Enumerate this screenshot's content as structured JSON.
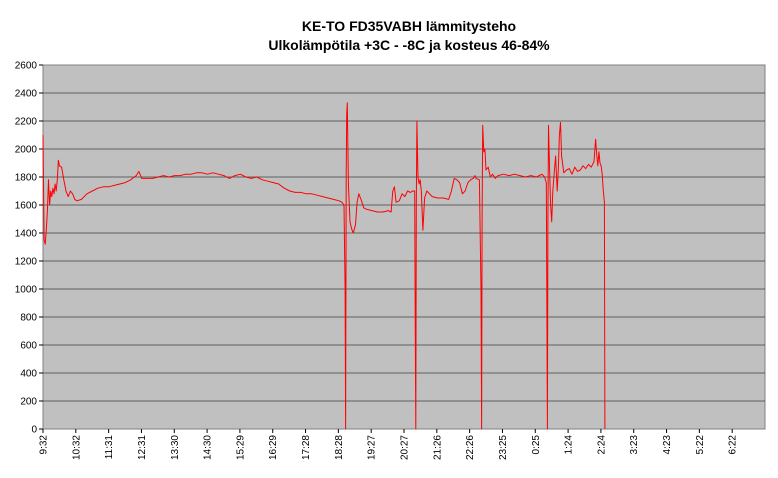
{
  "chart_data": {
    "type": "line",
    "title_line1": "KE-TO FD35VABH lämmitysteho",
    "title_line2": "Ulkolämpötila  +3C - -8C ja kosteus 46-84%",
    "xlabel": "",
    "ylabel": "",
    "ylim": [
      0,
      2600
    ],
    "y_ticks": [
      0,
      200,
      400,
      600,
      800,
      1000,
      1200,
      1400,
      1600,
      1800,
      2000,
      2200,
      2400,
      2600
    ],
    "x_tick_labels": [
      "9:32",
      "10:32",
      "11:31",
      "12:31",
      "13:30",
      "14:30",
      "15:29",
      "16:29",
      "17:28",
      "18:28",
      "19:27",
      "20:27",
      "21:26",
      "22:26",
      "23:25",
      "0:25",
      "1:24",
      "2:24",
      "3:23",
      "4:23",
      "5:22",
      "6:22"
    ],
    "x_range_minutes": [
      0,
      1317
    ],
    "plot_background": "#c0c0c0",
    "grid": true,
    "legend": "none",
    "series": [
      {
        "color": "#ff0000",
        "points": [
          [
            0,
            2100
          ],
          [
            2,
            1350
          ],
          [
            4,
            1320
          ],
          [
            6,
            1420
          ],
          [
            8,
            1560
          ],
          [
            10,
            1780
          ],
          [
            12,
            1600
          ],
          [
            14,
            1700
          ],
          [
            16,
            1660
          ],
          [
            18,
            1720
          ],
          [
            20,
            1680
          ],
          [
            22,
            1750
          ],
          [
            24,
            1700
          ],
          [
            26,
            1780
          ],
          [
            28,
            1920
          ],
          [
            30,
            1880
          ],
          [
            34,
            1870
          ],
          [
            38,
            1780
          ],
          [
            42,
            1700
          ],
          [
            46,
            1660
          ],
          [
            50,
            1700
          ],
          [
            54,
            1680
          ],
          [
            58,
            1640
          ],
          [
            62,
            1630
          ],
          [
            70,
            1640
          ],
          [
            80,
            1680
          ],
          [
            90,
            1700
          ],
          [
            100,
            1720
          ],
          [
            110,
            1730
          ],
          [
            120,
            1730
          ],
          [
            130,
            1740
          ],
          [
            140,
            1750
          ],
          [
            150,
            1760
          ],
          [
            160,
            1780
          ],
          [
            170,
            1810
          ],
          [
            175,
            1840
          ],
          [
            180,
            1790
          ],
          [
            190,
            1790
          ],
          [
            200,
            1790
          ],
          [
            210,
            1800
          ],
          [
            220,
            1810
          ],
          [
            230,
            1800
          ],
          [
            240,
            1810
          ],
          [
            250,
            1810
          ],
          [
            260,
            1820
          ],
          [
            270,
            1820
          ],
          [
            280,
            1830
          ],
          [
            290,
            1830
          ],
          [
            300,
            1820
          ],
          [
            310,
            1830
          ],
          [
            320,
            1820
          ],
          [
            330,
            1810
          ],
          [
            340,
            1790
          ],
          [
            350,
            1810
          ],
          [
            360,
            1820
          ],
          [
            370,
            1800
          ],
          [
            380,
            1790
          ],
          [
            390,
            1800
          ],
          [
            400,
            1780
          ],
          [
            410,
            1770
          ],
          [
            420,
            1760
          ],
          [
            430,
            1750
          ],
          [
            440,
            1720
          ],
          [
            450,
            1700
          ],
          [
            460,
            1690
          ],
          [
            470,
            1690
          ],
          [
            480,
            1680
          ],
          [
            490,
            1680
          ],
          [
            500,
            1670
          ],
          [
            510,
            1660
          ],
          [
            520,
            1650
          ],
          [
            530,
            1640
          ],
          [
            540,
            1630
          ],
          [
            545,
            1620
          ],
          [
            549,
            1600
          ],
          [
            551,
            1000
          ],
          [
            552,
            0
          ],
          [
            553,
            1800
          ],
          [
            554,
            2250
          ],
          [
            555,
            2330
          ],
          [
            557,
            1750
          ],
          [
            560,
            1480
          ],
          [
            563,
            1430
          ],
          [
            566,
            1400
          ],
          [
            570,
            1460
          ],
          [
            573,
            1620
          ],
          [
            576,
            1680
          ],
          [
            580,
            1640
          ],
          [
            585,
            1580
          ],
          [
            590,
            1570
          ],
          [
            600,
            1560
          ],
          [
            610,
            1550
          ],
          [
            620,
            1550
          ],
          [
            630,
            1560
          ],
          [
            635,
            1550
          ],
          [
            638,
            1700
          ],
          [
            641,
            1730
          ],
          [
            644,
            1620
          ],
          [
            650,
            1630
          ],
          [
            655,
            1680
          ],
          [
            660,
            1660
          ],
          [
            665,
            1700
          ],
          [
            670,
            1690
          ],
          [
            675,
            1700
          ],
          [
            678,
            1700
          ],
          [
            679,
            800
          ],
          [
            680,
            0
          ],
          [
            681,
            1600
          ],
          [
            682,
            2200
          ],
          [
            684,
            1800
          ],
          [
            686,
            1750
          ],
          [
            688,
            1780
          ],
          [
            690,
            1700
          ],
          [
            693,
            1420
          ],
          [
            696,
            1650
          ],
          [
            700,
            1700
          ],
          [
            705,
            1680
          ],
          [
            710,
            1660
          ],
          [
            720,
            1650
          ],
          [
            730,
            1650
          ],
          [
            740,
            1640
          ],
          [
            745,
            1700
          ],
          [
            750,
            1790
          ],
          [
            755,
            1780
          ],
          [
            760,
            1760
          ],
          [
            765,
            1680
          ],
          [
            770,
            1700
          ],
          [
            775,
            1760
          ],
          [
            780,
            1780
          ],
          [
            785,
            1790
          ],
          [
            788,
            1810
          ],
          [
            790,
            1790
          ],
          [
            796,
            1780
          ],
          [
            799,
            1000
          ],
          [
            800,
            0
          ],
          [
            801,
            1500
          ],
          [
            802,
            2170
          ],
          [
            804,
            1980
          ],
          [
            806,
            2000
          ],
          [
            808,
            1850
          ],
          [
            812,
            1870
          ],
          [
            816,
            1800
          ],
          [
            820,
            1820
          ],
          [
            825,
            1790
          ],
          [
            830,
            1810
          ],
          [
            840,
            1820
          ],
          [
            850,
            1810
          ],
          [
            860,
            1820
          ],
          [
            870,
            1810
          ],
          [
            880,
            1800
          ],
          [
            890,
            1810
          ],
          [
            900,
            1800
          ],
          [
            910,
            1820
          ],
          [
            915,
            1800
          ],
          [
            918,
            1760
          ],
          [
            919,
            1000
          ],
          [
            920,
            0
          ],
          [
            921,
            1500
          ],
          [
            922,
            2170
          ],
          [
            924,
            1850
          ],
          [
            926,
            1600
          ],
          [
            928,
            1480
          ],
          [
            930,
            1700
          ],
          [
            932,
            1800
          ],
          [
            935,
            1950
          ],
          [
            938,
            1700
          ],
          [
            940,
            1850
          ],
          [
            942,
            2100
          ],
          [
            944,
            2190
          ],
          [
            946,
            1950
          ],
          [
            950,
            1830
          ],
          [
            955,
            1850
          ],
          [
            960,
            1860
          ],
          [
            965,
            1820
          ],
          [
            970,
            1870
          ],
          [
            975,
            1840
          ],
          [
            980,
            1850
          ],
          [
            985,
            1880
          ],
          [
            990,
            1860
          ],
          [
            995,
            1890
          ],
          [
            1000,
            1870
          ],
          [
            1005,
            1910
          ],
          [
            1008,
            2070
          ],
          [
            1010,
            1960
          ],
          [
            1012,
            1880
          ],
          [
            1014,
            1980
          ],
          [
            1016,
            1900
          ],
          [
            1018,
            1880
          ],
          [
            1020,
            1820
          ],
          [
            1022,
            1700
          ],
          [
            1024,
            1620
          ],
          [
            1025,
            0
          ]
        ]
      }
    ]
  }
}
